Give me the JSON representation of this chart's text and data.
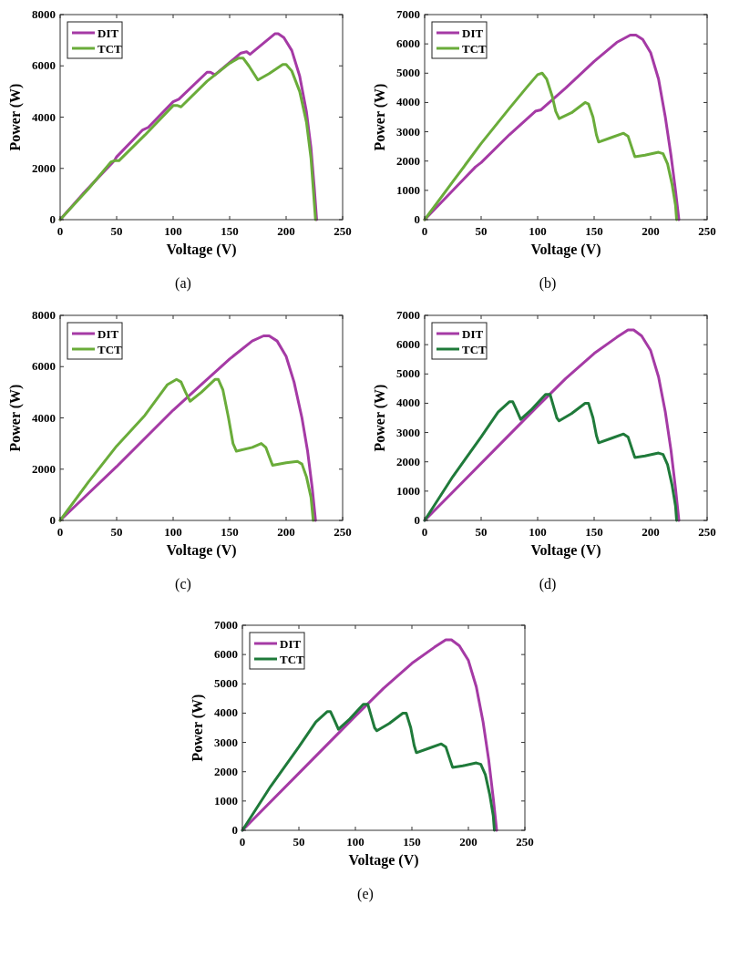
{
  "chart_data": [
    {
      "type": "line",
      "xlabel": "Voltage (V)",
      "ylabel": "Power (W)",
      "annotations": [
        "(a)"
      ],
      "xlim": [
        0,
        250
      ],
      "xticks": [
        0,
        50,
        100,
        150,
        200,
        250
      ],
      "ylim": [
        0,
        8000
      ],
      "yticks": [
        0,
        2000,
        4000,
        6000,
        8000
      ],
      "legend": "top left",
      "series": [
        {
          "name": "DIT",
          "color": "#a53aa5",
          "x": [
            0,
            20,
            48,
            50,
            73,
            78,
            100,
            105,
            130,
            133,
            137,
            160,
            165,
            168,
            190,
            193,
            198,
            205,
            212,
            218,
            222,
            225,
            227
          ],
          "values": [
            0,
            1000,
            2300,
            2450,
            3500,
            3600,
            4600,
            4700,
            5750,
            5750,
            5650,
            6500,
            6550,
            6450,
            7250,
            7250,
            7100,
            6600,
            5600,
            4200,
            2800,
            1200,
            0
          ]
        },
        {
          "name": "TCT",
          "color": "#6aac3a",
          "x": [
            0,
            25,
            45,
            48,
            52,
            75,
            100,
            104,
            107,
            130,
            150,
            158,
            162,
            167,
            175,
            185,
            197,
            200,
            205,
            212,
            218,
            222,
            224,
            226
          ],
          "values": [
            0,
            1200,
            2250,
            2300,
            2300,
            3300,
            4450,
            4450,
            4400,
            5400,
            6100,
            6300,
            6300,
            6000,
            5450,
            5700,
            6050,
            6050,
            5800,
            5000,
            3800,
            2400,
            1200,
            0
          ]
        }
      ]
    },
    {
      "type": "line",
      "xlabel": "Voltage (V)",
      "ylabel": "Power (W)",
      "annotations": [
        "(b)"
      ],
      "xlim": [
        0,
        250
      ],
      "xticks": [
        0,
        50,
        100,
        150,
        200,
        250
      ],
      "ylim": [
        0,
        7000
      ],
      "yticks": [
        0,
        1000,
        2000,
        3000,
        4000,
        5000,
        6000,
        7000
      ],
      "legend": "top left",
      "series": [
        {
          "name": "DIT",
          "color": "#a53aa5",
          "x": [
            0,
            20,
            45,
            50,
            75,
            98,
            103,
            125,
            150,
            170,
            182,
            187,
            193,
            200,
            207,
            213,
            218,
            222,
            225
          ],
          "values": [
            0,
            800,
            1800,
            1950,
            2900,
            3700,
            3750,
            4500,
            5400,
            6050,
            6300,
            6300,
            6150,
            5700,
            4800,
            3500,
            2200,
            1000,
            0
          ]
        },
        {
          "name": "TCT",
          "color": "#6aac3a",
          "x": [
            0,
            25,
            50,
            75,
            90,
            100,
            104,
            108,
            113,
            116,
            119,
            130,
            142,
            145,
            149,
            152,
            154,
            165,
            176,
            180,
            183,
            186,
            195,
            207,
            211,
            215,
            219,
            222,
            223
          ],
          "values": [
            0,
            1300,
            2600,
            3800,
            4500,
            4950,
            5000,
            4800,
            4200,
            3700,
            3450,
            3650,
            4000,
            3950,
            3500,
            2900,
            2650,
            2800,
            2950,
            2850,
            2500,
            2150,
            2200,
            2300,
            2250,
            1900,
            1200,
            500,
            0
          ]
        }
      ]
    },
    {
      "type": "line",
      "xlabel": "Voltage (V)",
      "ylabel": "Power (W)",
      "annotations": [
        "(c)"
      ],
      "xlim": [
        0,
        250
      ],
      "xticks": [
        0,
        50,
        100,
        150,
        200,
        250
      ],
      "ylim": [
        0,
        8000
      ],
      "yticks": [
        0,
        2000,
        4000,
        6000,
        8000
      ],
      "legend": "top left",
      "series": [
        {
          "name": "DIT",
          "color": "#a53aa5",
          "x": [
            0,
            50,
            100,
            125,
            150,
            170,
            180,
            185,
            192,
            200,
            207,
            214,
            219,
            223,
            226
          ],
          "values": [
            0,
            2100,
            4300,
            5300,
            6300,
            7000,
            7200,
            7200,
            7000,
            6400,
            5400,
            4000,
            2700,
            1300,
            0
          ]
        },
        {
          "name": "TCT",
          "color": "#6aac3a",
          "x": [
            0,
            25,
            50,
            75,
            95,
            103,
            107,
            111,
            115,
            125,
            137,
            140,
            144,
            149,
            153,
            156,
            170,
            178,
            182,
            185,
            188,
            200,
            210,
            214,
            218,
            222,
            224
          ],
          "values": [
            0,
            1500,
            2900,
            4100,
            5300,
            5500,
            5400,
            5000,
            4650,
            5000,
            5500,
            5500,
            5100,
            4000,
            3000,
            2700,
            2850,
            3000,
            2850,
            2500,
            2150,
            2250,
            2300,
            2200,
            1700,
            900,
            0
          ]
        }
      ]
    },
    {
      "type": "line",
      "xlabel": "Voltage (V)",
      "ylabel": "Power (W)",
      "annotations": [
        "(d)"
      ],
      "xlim": [
        0,
        250
      ],
      "xticks": [
        0,
        50,
        100,
        150,
        200,
        250
      ],
      "ylim": [
        0,
        7000
      ],
      "yticks": [
        0,
        1000,
        2000,
        3000,
        4000,
        5000,
        6000,
        7000
      ],
      "legend": "top left",
      "series": [
        {
          "name": "DIT",
          "color": "#a53aa5",
          "x": [
            0,
            50,
            100,
            125,
            150,
            170,
            180,
            185,
            192,
            200,
            207,
            213,
            218,
            222,
            225
          ],
          "values": [
            0,
            1950,
            3900,
            4850,
            5700,
            6250,
            6500,
            6500,
            6300,
            5800,
            4900,
            3700,
            2400,
            1100,
            0
          ]
        },
        {
          "name": "TCT",
          "color": "#1f7a3a",
          "x": [
            0,
            25,
            50,
            65,
            75,
            78,
            81,
            85,
            95,
            107,
            111,
            114,
            117,
            119,
            130,
            142,
            145,
            149,
            152,
            154,
            165,
            176,
            180,
            183,
            186,
            195,
            207,
            211,
            215,
            219,
            222,
            223
          ],
          "values": [
            0,
            1500,
            2850,
            3700,
            4050,
            4050,
            3800,
            3450,
            3800,
            4300,
            4300,
            3900,
            3500,
            3400,
            3650,
            4000,
            4000,
            3500,
            2900,
            2650,
            2800,
            2950,
            2850,
            2500,
            2150,
            2200,
            2300,
            2250,
            1900,
            1200,
            500,
            0
          ]
        }
      ]
    },
    {
      "type": "line",
      "xlabel": "Voltage (V)",
      "ylabel": "Power (W)",
      "annotations": [
        "(e)"
      ],
      "xlim": [
        0,
        250
      ],
      "xticks": [
        0,
        50,
        100,
        150,
        200,
        250
      ],
      "ylim": [
        0,
        7000
      ],
      "yticks": [
        0,
        1000,
        2000,
        3000,
        4000,
        5000,
        6000,
        7000
      ],
      "legend": "top left",
      "series": [
        {
          "name": "DIT",
          "color": "#a53aa5",
          "x": [
            0,
            50,
            100,
            125,
            150,
            170,
            180,
            185,
            192,
            200,
            207,
            213,
            218,
            222,
            225
          ],
          "values": [
            0,
            1950,
            3900,
            4850,
            5700,
            6250,
            6500,
            6500,
            6300,
            5800,
            4900,
            3700,
            2400,
            1100,
            0
          ]
        },
        {
          "name": "TCT",
          "color": "#1f7a3a",
          "x": [
            0,
            25,
            50,
            65,
            75,
            78,
            81,
            85,
            95,
            107,
            111,
            114,
            117,
            119,
            130,
            142,
            145,
            149,
            152,
            154,
            165,
            176,
            180,
            183,
            186,
            195,
            207,
            211,
            215,
            219,
            222,
            223
          ],
          "values": [
            0,
            1500,
            2850,
            3700,
            4050,
            4050,
            3800,
            3450,
            3800,
            4300,
            4300,
            3900,
            3500,
            3400,
            3650,
            4000,
            4000,
            3500,
            2900,
            2650,
            2800,
            2950,
            2850,
            2500,
            2150,
            2200,
            2300,
            2250,
            1900,
            1200,
            500,
            0
          ]
        }
      ]
    }
  ]
}
